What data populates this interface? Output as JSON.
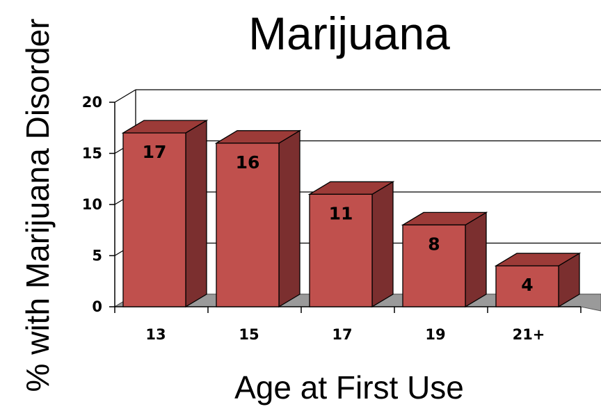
{
  "chart_data": {
    "type": "bar",
    "title": "Marijuana",
    "xlabel": "Age at First Use",
    "ylabel": "% with Marijuana Disorder",
    "categories": [
      "13",
      "15",
      "17",
      "19",
      "21+"
    ],
    "values": [
      17,
      16,
      11,
      8,
      4
    ],
    "data_labels": [
      "17",
      "16",
      "11",
      "8",
      "4"
    ],
    "ylim": [
      0,
      20
    ],
    "yticks": [
      "0",
      "5",
      "10",
      "15",
      "20"
    ],
    "grid": true,
    "legend": "none",
    "colors": {
      "bar_front": "#c0504d",
      "bar_side": "#7b2f2f",
      "bar_top": "#9c3b38",
      "floor": "#9a9a9a"
    }
  }
}
